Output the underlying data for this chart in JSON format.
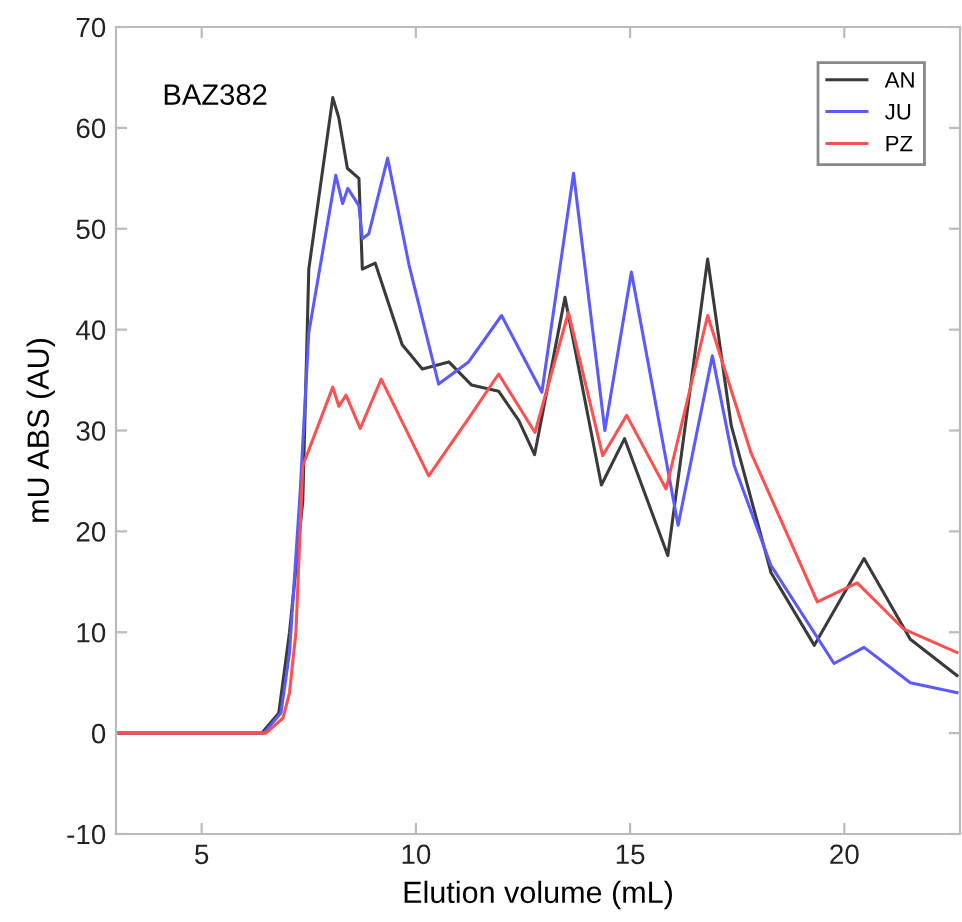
{
  "chart_data": {
    "type": "line",
    "xlabel": "Elution volume (mL)",
    "ylabel": "mU ABS (AU)",
    "annotations": [
      "BAZ382"
    ],
    "xlim": [
      3,
      22.7
    ],
    "xticks": [
      5,
      10,
      15,
      20
    ],
    "ylim": [
      -10,
      70
    ],
    "yticks": [
      -10,
      0,
      10,
      20,
      30,
      40,
      50,
      60,
      70
    ],
    "grid": false,
    "legend": "top right",
    "line_style": "solid",
    "marker": "none",
    "series": [
      {
        "name": "AN",
        "color": "#3a3a3a",
        "x": [
          3,
          6.4,
          6.8,
          7.05,
          7.36,
          7.5,
          8.06,
          8.2,
          8.4,
          8.67,
          8.75,
          9.05,
          9.68,
          10.15,
          10.77,
          11.3,
          11.93,
          12.4,
          12.77,
          13.48,
          14.33,
          14.87,
          15.88,
          16.81,
          17.36,
          18.29,
          19.3,
          20.46,
          21.54,
          22.63
        ],
        "values": [
          0,
          0,
          2,
          10,
          23,
          46,
          63,
          61,
          56,
          55,
          46,
          46.6,
          38.5,
          36.1,
          36.8,
          34.5,
          33.9,
          31,
          27.6,
          43.2,
          24.6,
          29.2,
          17.6,
          47,
          30.5,
          15.9,
          8.7,
          17.3,
          9.3,
          5.7
        ]
      },
      {
        "name": "JU",
        "color": "#5a5aff",
        "x": [
          3,
          6.45,
          6.85,
          7.05,
          7.3,
          7.5,
          8.13,
          8.29,
          8.41,
          8.67,
          8.75,
          8.9,
          9.34,
          9.84,
          10.53,
          11.23,
          12.0,
          12.94,
          13.68,
          14.41,
          15.03,
          16.12,
          16.92,
          17.43,
          18.29,
          19.76,
          20.46,
          21.54,
          22.63
        ],
        "values": [
          0,
          0,
          2,
          8,
          24,
          39.7,
          55.3,
          52.5,
          54,
          52.3,
          49,
          49.5,
          57,
          46.4,
          34.6,
          36.8,
          41.4,
          33.8,
          55.5,
          30,
          45.7,
          20.6,
          37.4,
          26.5,
          16.6,
          6.9,
          8.5,
          5,
          4
        ]
      },
      {
        "name": "PZ",
        "color": "#ff5050",
        "x": [
          3,
          6.5,
          6.9,
          7.05,
          7.2,
          7.36,
          8.06,
          8.2,
          8.37,
          8.7,
          9.19,
          10.3,
          11.23,
          11.93,
          12.78,
          13.56,
          14.36,
          14.92,
          15.84,
          16.81,
          17.82,
          19.37,
          20.3,
          21.39,
          22.63
        ],
        "values": [
          0,
          0,
          1.5,
          4,
          10,
          26.5,
          34.3,
          32.4,
          33.5,
          30.2,
          35.1,
          25.5,
          31.2,
          35.6,
          29.8,
          41.7,
          27.5,
          31.5,
          24.2,
          41.4,
          27.8,
          13,
          14.9,
          10.3,
          8
        ]
      }
    ]
  }
}
